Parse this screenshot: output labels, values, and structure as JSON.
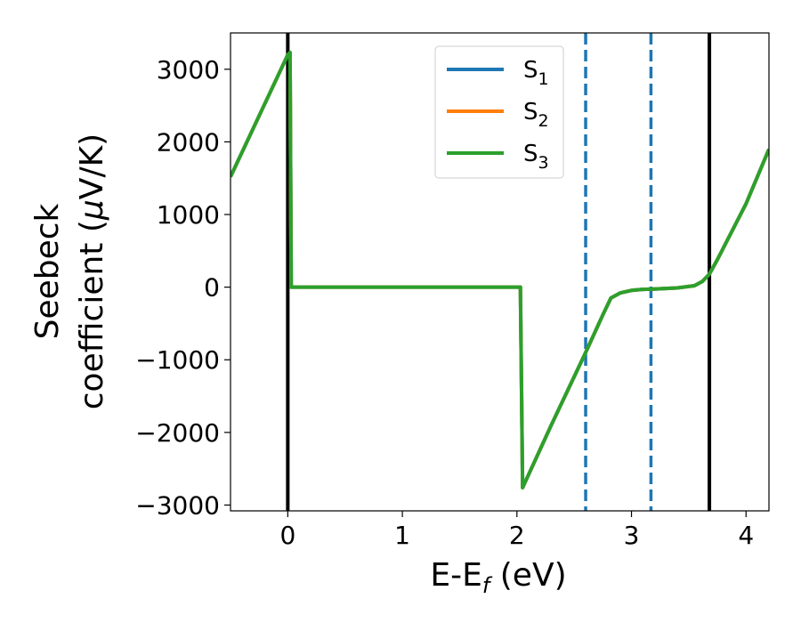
{
  "chart_data": {
    "type": "line",
    "xlabel": "E-E",
    "xlabel_sub": "f",
    "xlabel_unit": " (eV)",
    "ylabel_line1": "Seebeck",
    "ylabel_line2": "coefficient  (",
    "ylabel_mu": "μ",
    "ylabel_unit": "V/K)",
    "xlim": [
      -0.5,
      4.2
    ],
    "ylim": [
      -3080,
      3500
    ],
    "xticks": [
      0,
      1,
      2,
      3,
      4
    ],
    "xtick_labels": [
      "0",
      "1",
      "2",
      "3",
      "4"
    ],
    "yticks": [
      -3000,
      -2000,
      -1000,
      0,
      1000,
      2000,
      3000
    ],
    "ytick_labels": [
      "−3000",
      "−2000",
      "−1000",
      "0",
      "1000",
      "2000",
      "3000"
    ],
    "grid": false,
    "legend_position": "top-center",
    "series": [
      {
        "name": "S",
        "sub": "1",
        "color": "#1f77b4",
        "x": [
          -0.5,
          0.0,
          0.02,
          0.03,
          2.02,
          2.03,
          2.05,
          2.3,
          2.6,
          2.75,
          2.82,
          2.9,
          3.0,
          3.1,
          3.2,
          3.4,
          3.55,
          3.62,
          3.68,
          3.75,
          4.0,
          4.2
        ],
        "y": [
          1520,
          3200,
          3230,
          0,
          0,
          0,
          -2760,
          -1900,
          -900,
          -380,
          -150,
          -80,
          -45,
          -30,
          -25,
          -10,
          20,
          80,
          180,
          380,
          1150,
          1900
        ]
      },
      {
        "name": "S",
        "sub": "2",
        "color": "#ff7f0e",
        "x": [
          -0.5,
          0.0,
          0.02,
          0.03,
          2.02,
          2.03,
          2.05,
          2.3,
          2.6,
          2.75,
          2.82,
          2.9,
          3.0,
          3.1,
          3.2,
          3.4,
          3.55,
          3.62,
          3.68,
          3.75,
          4.0,
          4.2
        ],
        "y": [
          1520,
          3200,
          3230,
          0,
          0,
          0,
          -2760,
          -1900,
          -900,
          -380,
          -150,
          -80,
          -45,
          -30,
          -25,
          -10,
          20,
          80,
          180,
          380,
          1150,
          1900
        ]
      },
      {
        "name": "S",
        "sub": "3",
        "color": "#2ca02c",
        "x": [
          -0.5,
          0.0,
          0.02,
          0.03,
          2.02,
          2.03,
          2.05,
          2.3,
          2.6,
          2.75,
          2.82,
          2.9,
          3.0,
          3.1,
          3.2,
          3.4,
          3.55,
          3.62,
          3.68,
          3.75,
          4.0,
          4.2
        ],
        "y": [
          1520,
          3200,
          3230,
          0,
          0,
          0,
          -2760,
          -1900,
          -900,
          -380,
          -150,
          -80,
          -45,
          -30,
          -25,
          -10,
          20,
          80,
          180,
          380,
          1150,
          1900
        ]
      }
    ],
    "vlines": [
      {
        "x": 0.0,
        "color": "#000000",
        "style": "solid"
      },
      {
        "x": 3.68,
        "color": "#000000",
        "style": "solid"
      },
      {
        "x": 2.6,
        "color": "#1f77b4",
        "style": "dashed"
      },
      {
        "x": 3.17,
        "color": "#1f77b4",
        "style": "dashed"
      }
    ]
  }
}
